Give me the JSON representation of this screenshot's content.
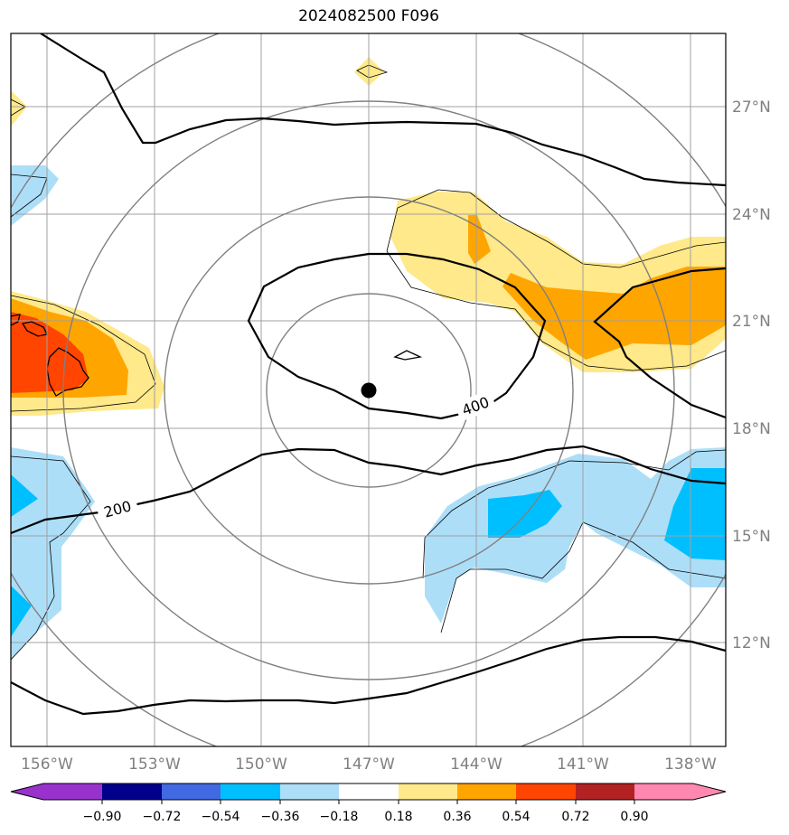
{
  "title": "2024082500 F096",
  "map": {
    "lon_ticks": [
      "156°W",
      "153°W",
      "150°W",
      "147°W",
      "144°W",
      "141°W",
      "138°W"
    ],
    "lat_ticks": [
      "27°N",
      "24°N",
      "21°N",
      "18°N",
      "15°N",
      "12°N"
    ],
    "center_marker": "storm-center-dot",
    "contour_labels": [
      "200",
      "400"
    ]
  },
  "colorbar": {
    "labels": [
      "−0.90",
      "−0.72",
      "−0.54",
      "−0.36",
      "−0.18",
      "0.18",
      "0.36",
      "0.54",
      "0.72",
      "0.90"
    ],
    "colors": [
      "#9932CC",
      "#00008B",
      "#4169E1",
      "#00BFFF",
      "#ADDEF8",
      "#FFFFFF",
      "#FFE98A",
      "#FFA500",
      "#FF4500",
      "#B22222",
      "#FF88B0"
    ]
  }
}
